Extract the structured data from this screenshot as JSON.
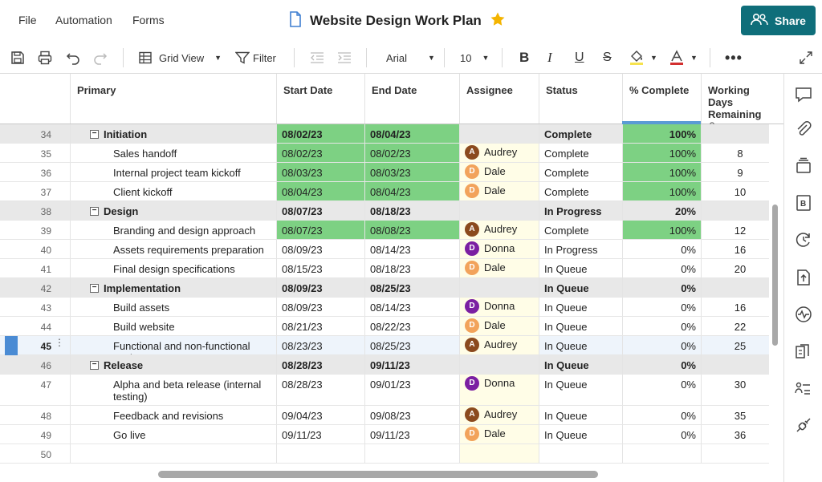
{
  "menu": {
    "file": "File",
    "automation": "Automation",
    "forms": "Forms"
  },
  "document": {
    "title": "Website Design Work Plan"
  },
  "share": {
    "label": "Share"
  },
  "toolbar": {
    "view_label": "Grid View",
    "filter_label": "Filter",
    "font_family": "Arial",
    "font_size": "10"
  },
  "colors": {
    "share": "#0f6e7a",
    "complete_green": "#7dd183",
    "avatar_audrey": "#8b4a1e",
    "avatar_dale": "#f2a35b",
    "avatar_donna": "#7b1fa2",
    "selection": "#4a8bd4"
  },
  "columns": {
    "primary": "Primary",
    "start": "Start Date",
    "end": "End Date",
    "assignee": "Assignee",
    "status": "Status",
    "pct": "% Complete",
    "wdr": "Working Days Remaining"
  },
  "rows": [
    {
      "num": "34",
      "type": "parent",
      "name": "Initiation",
      "start": "08/02/23",
      "end": "08/04/23",
      "assignee": "",
      "initial": "",
      "status": "Complete",
      "pct": "100%",
      "days": "",
      "green_dates": true,
      "green_pct": true
    },
    {
      "num": "35",
      "type": "child",
      "name": "Sales handoff",
      "start": "08/02/23",
      "end": "08/02/23",
      "assignee": "Audrey",
      "initial": "A",
      "status": "Complete",
      "pct": "100%",
      "days": "8",
      "green_dates": true,
      "green_pct": true
    },
    {
      "num": "36",
      "type": "child",
      "name": "Internal project team kickoff",
      "start": "08/03/23",
      "end": "08/03/23",
      "assignee": "Dale",
      "initial": "D",
      "status": "Complete",
      "pct": "100%",
      "days": "9",
      "green_dates": true,
      "green_pct": true
    },
    {
      "num": "37",
      "type": "child",
      "name": "Client kickoff",
      "start": "08/04/23",
      "end": "08/04/23",
      "assignee": "Dale",
      "initial": "D",
      "status": "Complete",
      "pct": "100%",
      "days": "10",
      "green_dates": true,
      "green_pct": true
    },
    {
      "num": "38",
      "type": "parent",
      "name": "Design",
      "start": "08/07/23",
      "end": "08/18/23",
      "assignee": "",
      "initial": "",
      "status": "In Progress",
      "pct": "20%",
      "days": "",
      "green_dates": false,
      "green_pct": false
    },
    {
      "num": "39",
      "type": "child",
      "name": "Branding and design approach",
      "start": "08/07/23",
      "end": "08/08/23",
      "assignee": "Audrey",
      "initial": "A",
      "status": "Complete",
      "pct": "100%",
      "days": "12",
      "green_dates": true,
      "green_pct": true
    },
    {
      "num": "40",
      "type": "child",
      "name": "Assets requirements preparation",
      "start": "08/09/23",
      "end": "08/14/23",
      "assignee": "Donna",
      "initial": "D",
      "status": "In Progress",
      "pct": "0%",
      "days": "16",
      "green_dates": false,
      "green_pct": false
    },
    {
      "num": "41",
      "type": "child",
      "name": "Final design specifications",
      "start": "08/15/23",
      "end": "08/18/23",
      "assignee": "Dale",
      "initial": "D",
      "status": "In Queue",
      "pct": "0%",
      "days": "20",
      "green_dates": false,
      "green_pct": false
    },
    {
      "num": "42",
      "type": "parent",
      "name": "Implementation",
      "start": "08/09/23",
      "end": "08/25/23",
      "assignee": "",
      "initial": "",
      "status": "In Queue",
      "pct": "0%",
      "days": "",
      "green_dates": false,
      "green_pct": false
    },
    {
      "num": "43",
      "type": "child",
      "name": "Build assets",
      "start": "08/09/23",
      "end": "08/14/23",
      "assignee": "Donna",
      "initial": "D",
      "status": "In Queue",
      "pct": "0%",
      "days": "16",
      "green_dates": false,
      "green_pct": false
    },
    {
      "num": "44",
      "type": "child",
      "name": "Build website",
      "start": "08/21/23",
      "end": "08/22/23",
      "assignee": "Dale",
      "initial": "D",
      "status": "In Queue",
      "pct": "0%",
      "days": "22",
      "green_dates": false,
      "green_pct": false
    },
    {
      "num": "45",
      "type": "child",
      "name": "Functional and non-functional testing",
      "start": "08/23/23",
      "end": "08/25/23",
      "assignee": "Audrey",
      "initial": "A",
      "status": "In Queue",
      "pct": "0%",
      "days": "25",
      "green_dates": false,
      "green_pct": false,
      "selected": true
    },
    {
      "num": "46",
      "type": "parent",
      "name": "Release",
      "start": "08/28/23",
      "end": "09/11/23",
      "assignee": "",
      "initial": "",
      "status": "In Queue",
      "pct": "0%",
      "days": "",
      "green_dates": false,
      "green_pct": false
    },
    {
      "num": "47",
      "type": "child",
      "name": "Alpha and beta release (internal testing)",
      "start": "08/28/23",
      "end": "09/01/23",
      "assignee": "Donna",
      "initial": "D",
      "status": "In Queue",
      "pct": "0%",
      "days": "30",
      "green_dates": false,
      "green_pct": false
    },
    {
      "num": "48",
      "type": "child",
      "name": "Feedback and revisions",
      "start": "09/04/23",
      "end": "09/08/23",
      "assignee": "Audrey",
      "initial": "A",
      "status": "In Queue",
      "pct": "0%",
      "days": "35",
      "green_dates": false,
      "green_pct": false
    },
    {
      "num": "49",
      "type": "child",
      "name": "Go live",
      "start": "09/11/23",
      "end": "09/11/23",
      "assignee": "Dale",
      "initial": "D",
      "status": "In Queue",
      "pct": "0%",
      "days": "36",
      "green_dates": false,
      "green_pct": false
    },
    {
      "num": "50",
      "type": "empty",
      "name": "",
      "start": "",
      "end": "",
      "assignee": "",
      "initial": "",
      "status": "",
      "pct": "",
      "days": "",
      "green_dates": false,
      "green_pct": false
    }
  ],
  "sidebar": [
    "comments-icon",
    "attachments-icon",
    "summary-icon",
    "brandfolder-icon",
    "activity-log-icon",
    "publish-icon",
    "work-insights-icon",
    "proofs-icon",
    "forms-icon",
    "connections-icon"
  ]
}
